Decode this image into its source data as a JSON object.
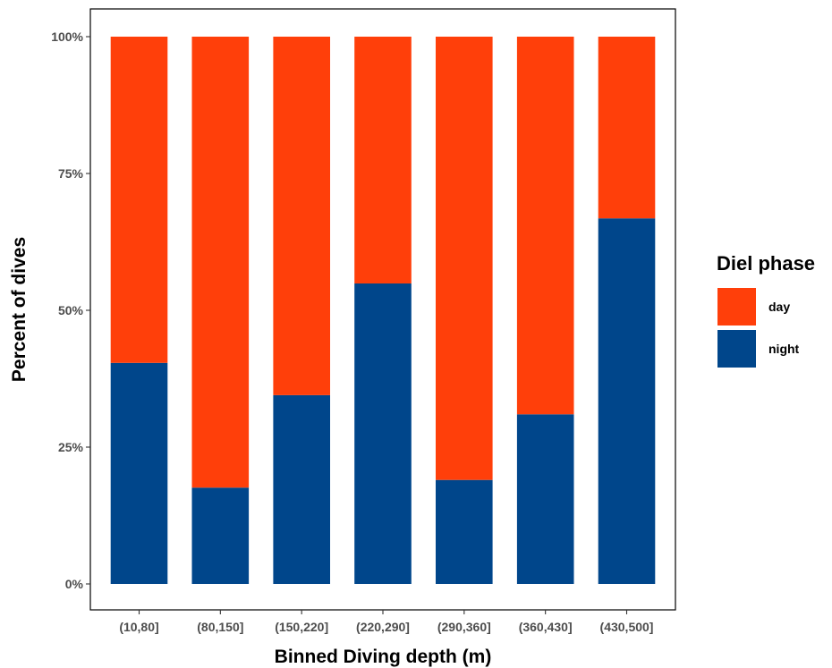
{
  "chart_data": {
    "type": "bar",
    "stacked": true,
    "categories": [
      "(10,80]",
      "(80,150]",
      "(150,220]",
      "(220,290]",
      "(290,360]",
      "(360,430]",
      "(430,500]"
    ],
    "series": [
      {
        "name": "night",
        "color": "#00468B",
        "values": [
          40.4,
          17.6,
          34.5,
          54.9,
          19.0,
          31.0,
          66.8
        ]
      },
      {
        "name": "day",
        "color": "#FF3F0A",
        "values": [
          59.6,
          82.4,
          65.5,
          45.1,
          81.0,
          69.0,
          33.2
        ]
      }
    ],
    "xlabel": "Binned Diving depth (m)",
    "ylabel": "Percent of dives",
    "ylim": [
      0,
      100
    ],
    "yticks": [
      "0%",
      "25%",
      "50%",
      "75%",
      "100%"
    ],
    "grid": false,
    "legend": {
      "title": "Diel phase",
      "position": "right",
      "items": [
        "day",
        "night"
      ]
    }
  }
}
